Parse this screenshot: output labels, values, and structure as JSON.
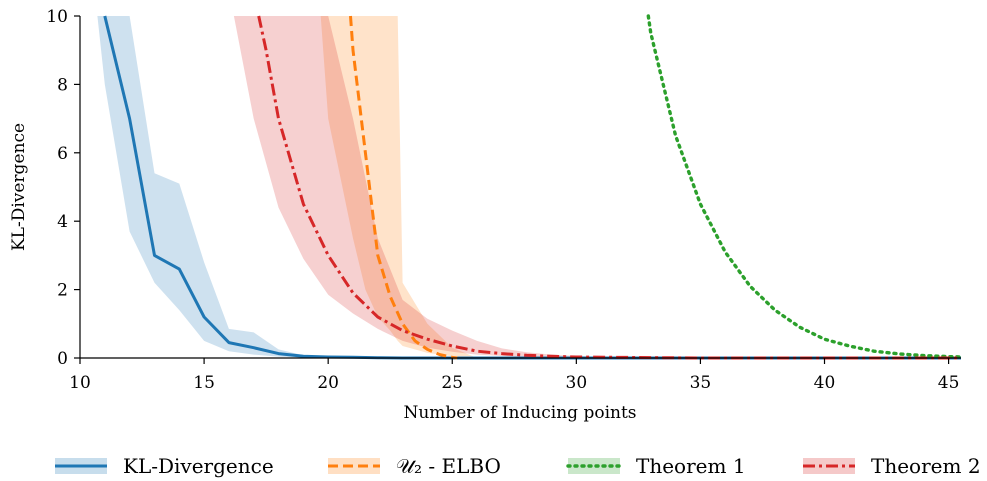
{
  "chart_data": {
    "type": "line",
    "title": "",
    "xlabel": "Number of Inducing points",
    "ylabel": "KL-Divergence",
    "xlim": [
      10,
      45.5
    ],
    "ylim": [
      0,
      10
    ],
    "xticks": [
      "10",
      "15",
      "20",
      "25",
      "30",
      "35",
      "40",
      "45"
    ],
    "yticks": [
      "0",
      "2",
      "4",
      "6",
      "8",
      "10"
    ],
    "grid": false,
    "legend_position": "bottom",
    "series": [
      {
        "name": "KL-Divergence",
        "style": "solid",
        "color": "#1f77b4",
        "x": [
          11,
          12,
          13,
          14,
          15,
          16,
          17,
          18,
          19,
          20,
          21,
          22,
          23,
          24,
          25,
          26,
          27,
          28,
          29,
          30,
          35,
          40,
          45.5
        ],
        "y": [
          10.0,
          7.0,
          3.0,
          2.6,
          1.2,
          0.45,
          0.3,
          0.13,
          0.05,
          0.03,
          0.02,
          0.01,
          0.0,
          0.0,
          0.0,
          0.0,
          0.0,
          0.0,
          0.0,
          0.0,
          0.0,
          0.0,
          0.0
        ],
        "band_x": [
          10.7,
          11,
          12,
          13,
          14,
          15,
          16,
          17,
          18,
          19,
          20
        ],
        "band_lower": [
          10.0,
          8.0,
          3.7,
          2.2,
          1.4,
          0.5,
          0.2,
          0.1,
          0.04,
          0.01,
          0.0
        ],
        "band_upper": [
          10.0,
          10.0,
          10.0,
          5.4,
          5.1,
          2.8,
          0.85,
          0.75,
          0.25,
          0.08,
          0.03
        ]
      },
      {
        "name": "𝒰₂ - ELBO",
        "style": "dashed",
        "color": "#ff7f0e",
        "x": [
          20.9,
          21,
          21.5,
          22,
          22.5,
          23,
          23.5,
          24,
          24.5,
          25,
          25.2
        ],
        "y": [
          10.0,
          9.0,
          6.0,
          3.0,
          1.8,
          1.0,
          0.5,
          0.25,
          0.1,
          0.02,
          0.0
        ],
        "band_x": [
          19.7,
          20,
          21,
          21.5,
          22,
          22.5,
          22.8,
          23,
          24,
          25,
          26
        ],
        "band_lower": [
          10.0,
          7.0,
          3.5,
          2.0,
          1.2,
          0.8,
          0.5,
          0.35,
          0.15,
          0.05,
          0.0
        ],
        "band_upper": [
          10.0,
          10.0,
          10.0,
          10.0,
          10.0,
          10.0,
          10.0,
          2.2,
          1.0,
          0.3,
          0.0
        ]
      },
      {
        "name": "Theorem 1",
        "style": "dotted",
        "color": "#2ca02c",
        "x": [
          32.9,
          33,
          34,
          35,
          36,
          37,
          38,
          39,
          40,
          41,
          42,
          43,
          44,
          45,
          45.5
        ],
        "y": [
          10.0,
          9.5,
          6.5,
          4.5,
          3.1,
          2.1,
          1.4,
          0.9,
          0.55,
          0.35,
          0.2,
          0.12,
          0.07,
          0.04,
          0.03
        ]
      },
      {
        "name": "Theorem 2",
        "style": "dashdot",
        "color": "#d62728",
        "x": [
          17.2,
          17.5,
          18,
          19,
          20,
          21,
          22,
          23,
          24,
          25,
          26,
          27,
          28,
          29,
          30,
          35,
          40,
          45.5
        ],
        "y": [
          10.0,
          9.0,
          7.0,
          4.5,
          3.0,
          1.9,
          1.2,
          0.8,
          0.55,
          0.35,
          0.2,
          0.13,
          0.08,
          0.05,
          0.03,
          0.0,
          0.0,
          0.0
        ],
        "band_x": [
          16.2,
          17,
          18,
          19,
          20,
          21,
          22,
          23,
          24,
          25,
          26,
          27,
          28,
          29,
          30,
          31,
          32
        ],
        "band_lower": [
          10.0,
          7.0,
          4.4,
          2.9,
          1.85,
          1.3,
          0.85,
          0.5,
          0.3,
          0.18,
          0.1,
          0.06,
          0.03,
          0.01,
          0.0,
          0.0,
          0.0
        ],
        "band_upper": [
          10.0,
          10.0,
          10.0,
          10.0,
          10.0,
          7.0,
          3.5,
          1.7,
          1.15,
          0.8,
          0.5,
          0.28,
          0.17,
          0.1,
          0.06,
          0.03,
          0.0
        ]
      }
    ]
  }
}
